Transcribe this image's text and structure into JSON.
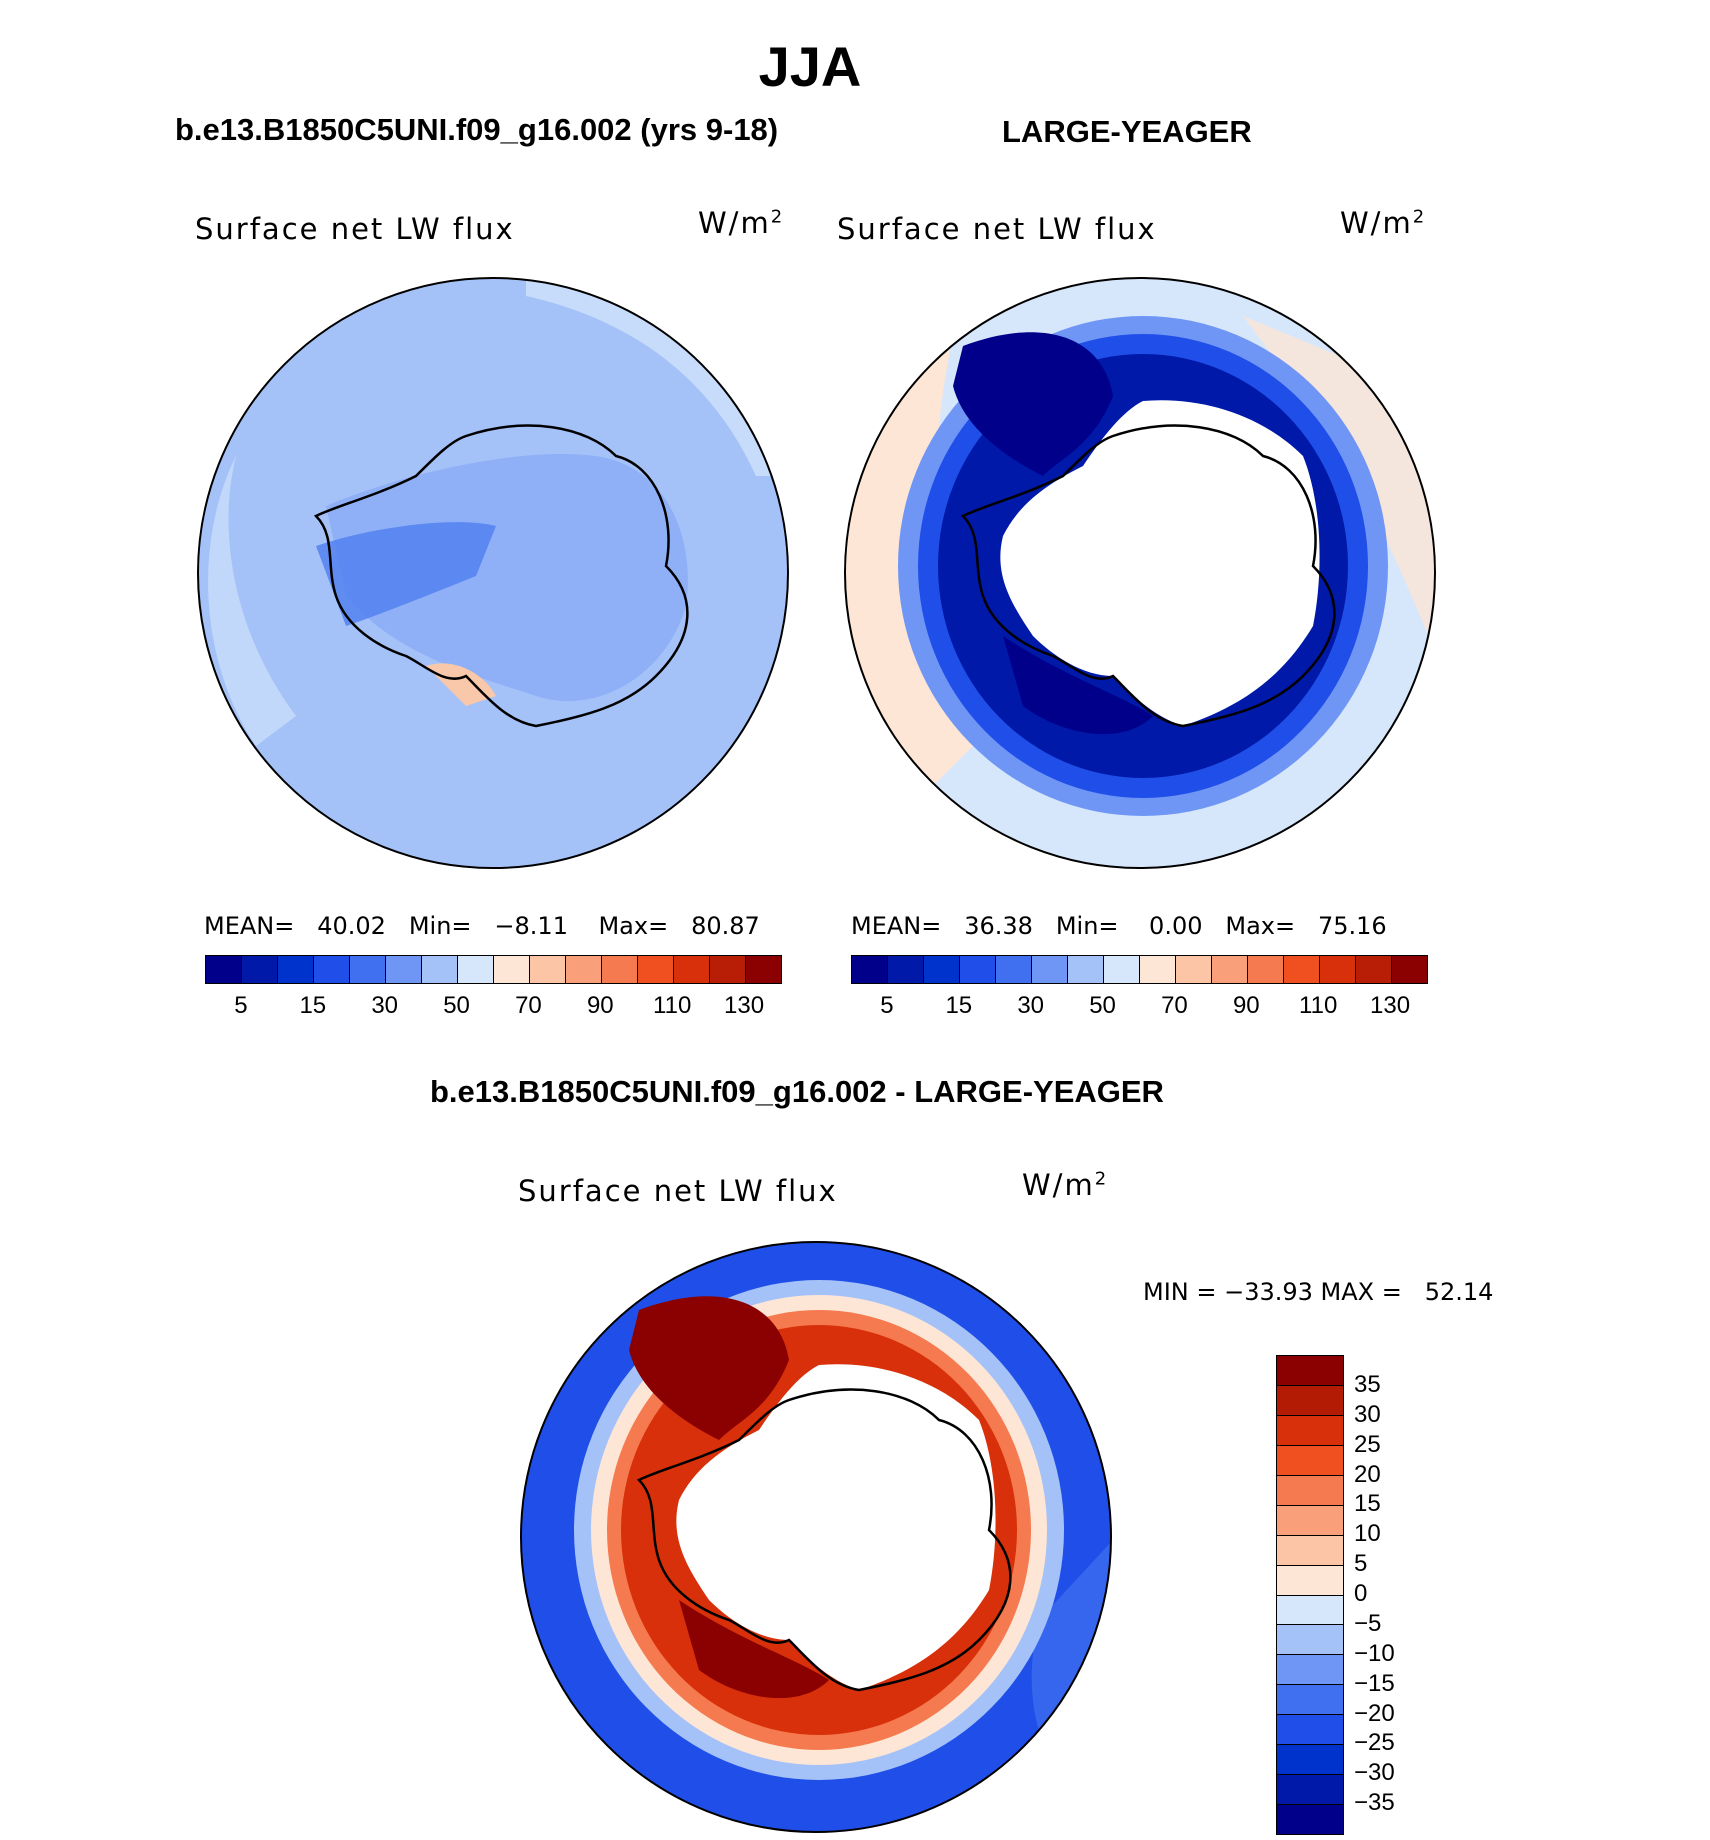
{
  "figure": {
    "title": "JJA",
    "bottom_title": "b.e13.B1850C5UNI.f09_g16.002 - LARGE-YEAGER"
  },
  "panels": [
    {
      "case": "b.e13.B1850C5UNI.f09_g16.002 (yrs 9-18)",
      "label": "Surface net LW flux",
      "unit_base": "W/m",
      "unit_exp": "2",
      "stats": "MEAN=   40.02   Min=   −8.11    Max=   80.87",
      "colorbar": {
        "colors": [
          "#00008b",
          "#0019a8",
          "#0033cc",
          "#1f4fe8",
          "#4070f0",
          "#6f96f5",
          "#a5c2f8",
          "#d6e6fb",
          "#fde6d6",
          "#fcc5a6",
          "#f9a07a",
          "#f57a4f",
          "#f0501f",
          "#d8300a",
          "#b81e06",
          "#8b0000"
        ],
        "labels": [
          "5",
          "15",
          "30",
          "50",
          "70",
          "90",
          "110",
          "130"
        ]
      }
    },
    {
      "case": "LARGE-YEAGER",
      "label": "Surface net LW flux",
      "unit_base": "W/m",
      "unit_exp": "2",
      "stats": "MEAN=   36.38   Min=    0.00   Max=   75.16",
      "colorbar": {
        "colors": [
          "#00008b",
          "#0019a8",
          "#0033cc",
          "#1f4fe8",
          "#4070f0",
          "#6f96f5",
          "#a5c2f8",
          "#d6e6fb",
          "#fde6d6",
          "#fcc5a6",
          "#f9a07a",
          "#f57a4f",
          "#f0501f",
          "#d8300a",
          "#b81e06",
          "#8b0000"
        ],
        "labels": [
          "5",
          "15",
          "30",
          "50",
          "70",
          "90",
          "110",
          "130"
        ]
      }
    },
    {
      "case": "",
      "label": "Surface net LW flux",
      "unit_base": "W/m",
      "unit_exp": "2",
      "stats": "MIN = −33.93 MAX =   52.14",
      "colorbar": {
        "colors": [
          "#8b0000",
          "#b31b04",
          "#d8300a",
          "#f0501f",
          "#f57a4f",
          "#f9a07a",
          "#fcc5a6",
          "#fde6d6",
          "#d6e6fb",
          "#a5c2f8",
          "#6f96f5",
          "#4070f0",
          "#1f4fe8",
          "#0033cc",
          "#0019a8",
          "#00008b"
        ],
        "labels": [
          "35",
          "30",
          "25",
          "20",
          "15",
          "10",
          "5",
          "0",
          "−5",
          "−10",
          "−15",
          "−20",
          "−25",
          "−30",
          "−35"
        ]
      }
    }
  ]
}
